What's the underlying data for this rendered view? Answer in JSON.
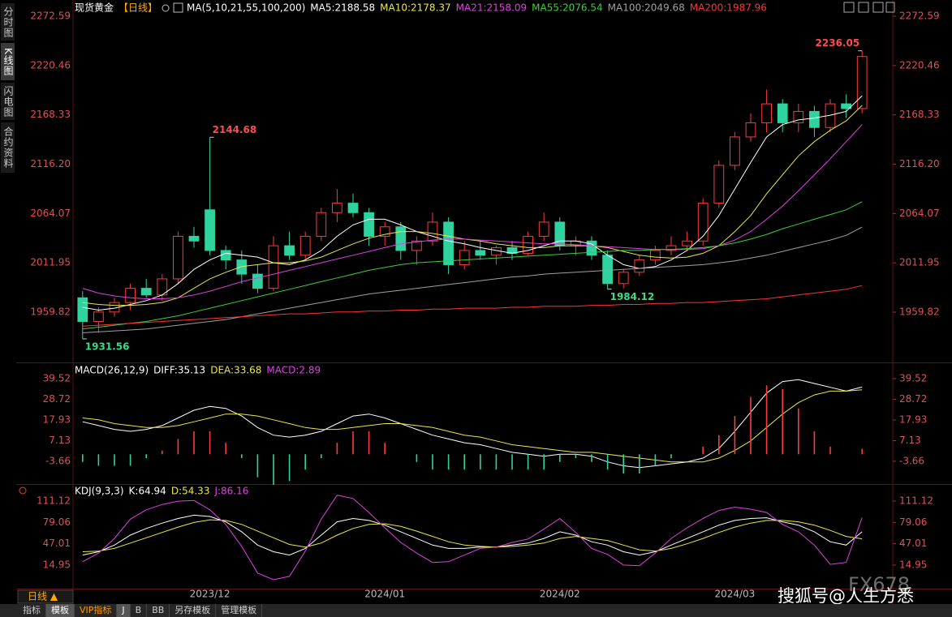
{
  "chart_data": [
    {
      "type": "candlestick",
      "title": "现货黄金",
      "period": "【日线】",
      "indicator": "MA(5,10,21,55,100,200)",
      "categories": [
        null,
        null,
        null,
        null,
        null,
        null,
        null,
        null,
        "2023/12",
        null,
        null,
        null,
        null,
        null,
        null,
        null,
        null,
        null,
        null,
        "2024/01",
        null,
        null,
        null,
        null,
        null,
        null,
        null,
        null,
        null,
        null,
        "2024/02",
        null,
        null,
        null,
        null,
        null,
        null,
        null,
        null,
        null,
        null,
        "2024/03",
        null,
        null,
        null,
        null,
        null,
        null,
        null,
        null
      ],
      "open": [
        1975,
        1950,
        1960,
        1970,
        1985,
        1978,
        1995,
        2040,
        2068,
        2025,
        2015,
        2000,
        1985,
        2030,
        2020,
        2040,
        2065,
        2075,
        2065,
        2040,
        2050,
        2025,
        2035,
        2055,
        2010,
        2025,
        2020,
        2028,
        2022,
        2040,
        2055,
        2030,
        2035,
        2020,
        1990,
        2002,
        2015,
        2025,
        2030,
        2035,
        2075,
        2115,
        2145,
        2160,
        2180,
        2160,
        2172,
        2155,
        2180,
        2175
      ],
      "high": [
        1982,
        1965,
        1975,
        1990,
        1995,
        2000,
        2045,
        2050,
        2144.68,
        2030,
        2025,
        2010,
        2040,
        2045,
        2045,
        2070,
        2090,
        2085,
        2070,
        2055,
        2055,
        2040,
        2065,
        2060,
        2035,
        2035,
        2030,
        2035,
        2045,
        2065,
        2060,
        2040,
        2040,
        2025,
        2005,
        2020,
        2030,
        2040,
        2045,
        2080,
        2120,
        2150,
        2170,
        2195,
        2185,
        2180,
        2178,
        2185,
        2190,
        2236.05
      ],
      "low": [
        1931.56,
        1938,
        1955,
        1962,
        1975,
        1972,
        1990,
        2028,
        2020,
        2005,
        1990,
        1980,
        1982,
        2015,
        2015,
        2035,
        2055,
        2060,
        2030,
        2030,
        2015,
        2010,
        2030,
        2000,
        2005,
        2015,
        2010,
        2015,
        2020,
        2035,
        2025,
        2020,
        2015,
        1984.12,
        1985,
        1998,
        2010,
        2020,
        2025,
        2030,
        2070,
        2110,
        2140,
        2150,
        2150,
        2150,
        2145,
        2150,
        2165,
        2170
      ],
      "close": [
        1950,
        1960,
        1970,
        1985,
        1978,
        1995,
        2040,
        2035,
        2025,
        2015,
        2000,
        1985,
        2030,
        2020,
        2040,
        2065,
        2075,
        2065,
        2040,
        2050,
        2025,
        2035,
        2055,
        2010,
        2025,
        2020,
        2028,
        2022,
        2040,
        2055,
        2030,
        2035,
        2020,
        1990,
        2002,
        2015,
        2025,
        2030,
        2035,
        2075,
        2115,
        2145,
        2160,
        2180,
        2160,
        2172,
        2155,
        2180,
        2175,
        2230
      ],
      "up_color": "#ff3a3a",
      "down_color": "#2fd3a0",
      "high_label_color": "#ff4d4d",
      "low_label_color": "#3ddc84",
      "series": [
        {
          "name": "MA5:2188.58",
          "color": "#ffffff",
          "values": [
            1965,
            1962,
            1964,
            1968,
            1972,
            1978,
            1990,
            2005,
            2015,
            2022,
            2020,
            2018,
            2012,
            2010,
            2015,
            2025,
            2040,
            2052,
            2058,
            2058,
            2052,
            2045,
            2040,
            2035,
            2032,
            2028,
            2025,
            2022,
            2025,
            2030,
            2035,
            2035,
            2032,
            2020,
            2010,
            2006,
            2008,
            2015,
            2025,
            2040,
            2062,
            2090,
            2118,
            2145,
            2158,
            2163,
            2165,
            2168,
            2172,
            2188.58
          ]
        },
        {
          "name": "MA10:2178.37",
          "color": "#e8e84a",
          "values": [
            1970,
            1968,
            1967,
            1967,
            1968,
            1970,
            1975,
            1985,
            1995,
            2002,
            2008,
            2010,
            2012,
            2012,
            2014,
            2018,
            2025,
            2032,
            2038,
            2042,
            2045,
            2045,
            2043,
            2040,
            2037,
            2035,
            2032,
            2030,
            2028,
            2028,
            2030,
            2030,
            2030,
            2028,
            2024,
            2020,
            2018,
            2017,
            2018,
            2022,
            2030,
            2045,
            2062,
            2085,
            2105,
            2125,
            2140,
            2152,
            2162,
            2178.37
          ]
        },
        {
          "name": "MA21:2158.09",
          "color": "#e040e0",
          "values": [
            1985,
            1980,
            1977,
            1975,
            1974,
            1974,
            1975,
            1978,
            1982,
            1987,
            1992,
            1996,
            2000,
            2004,
            2008,
            2012,
            2016,
            2020,
            2024,
            2028,
            2032,
            2034,
            2036,
            2037,
            2037,
            2036,
            2035,
            2034,
            2033,
            2032,
            2032,
            2031,
            2030,
            2029,
            2028,
            2027,
            2026,
            2026,
            2026,
            2027,
            2030,
            2036,
            2045,
            2058,
            2072,
            2088,
            2105,
            2122,
            2140,
            2158.09
          ]
        },
        {
          "name": "MA55:2076.54",
          "color": "#3ccf3c",
          "values": [
            1942,
            1944,
            1946,
            1948,
            1950,
            1953,
            1956,
            1960,
            1964,
            1968,
            1972,
            1976,
            1980,
            1984,
            1988,
            1992,
            1996,
            2000,
            2004,
            2007,
            2010,
            2012,
            2013,
            2014,
            2015,
            2016,
            2017,
            2018,
            2019,
            2020,
            2021,
            2022,
            2023,
            2024,
            2025,
            2025,
            2026,
            2026,
            2027,
            2028,
            2030,
            2033,
            2037,
            2042,
            2048,
            2053,
            2058,
            2063,
            2068,
            2076.54
          ]
        },
        {
          "name": "MA100:2049.68",
          "color": "#a0a0a0",
          "values": [
            1938,
            1939,
            1940,
            1941,
            1942,
            1944,
            1946,
            1948,
            1950,
            1952,
            1955,
            1958,
            1961,
            1964,
            1967,
            1970,
            1973,
            1976,
            1979,
            1981,
            1983,
            1985,
            1987,
            1989,
            1991,
            1993,
            1995,
            1997,
            1998,
            2000,
            2001,
            2002,
            2003,
            2004,
            2005,
            2006,
            2007,
            2008,
            2009,
            2010,
            2012,
            2014,
            2017,
            2020,
            2024,
            2028,
            2032,
            2036,
            2041,
            2049.68
          ]
        },
        {
          "name": "MA200:1987.96",
          "color": "#ff3333",
          "values": [
            1945,
            1946,
            1947,
            1948,
            1949,
            1950,
            1951,
            1952,
            1953,
            1954,
            1955,
            1956,
            1957,
            1958,
            1958,
            1959,
            1960,
            1960,
            1961,
            1961,
            1962,
            1962,
            1963,
            1963,
            1964,
            1964,
            1964,
            1965,
            1965,
            1966,
            1966,
            1966,
            1967,
            1967,
            1968,
            1968,
            1969,
            1969,
            1970,
            1970,
            1971,
            1972,
            1973,
            1974,
            1976,
            1978,
            1980,
            1982,
            1984,
            1987.96
          ]
        }
      ],
      "ylim": [
        1908.4,
        2282.9
      ],
      "yticks": [
        2272.59,
        2220.46,
        2168.33,
        {
          "value": 2116.2,
          "label": "2116.20"
        },
        2064.07,
        2011.95,
        1959.82
      ]
    },
    {
      "type": "macd",
      "title": "MACD(26,12,9)",
      "series": [
        {
          "name": "DIFF:35.13",
          "color": "#ffffff",
          "values": [
            17,
            15,
            13,
            12,
            13,
            15,
            19,
            23,
            25,
            24,
            20,
            14,
            10,
            9,
            10,
            12,
            16,
            20,
            21,
            19,
            16,
            13,
            10,
            8,
            6,
            5,
            3,
            1,
            0,
            -1,
            0,
            0,
            -1,
            -4,
            -6,
            -7,
            -6,
            -5,
            -4,
            -2,
            3,
            12,
            22,
            32,
            38,
            39,
            37,
            35,
            33,
            35.13
          ]
        },
        {
          "name": "DEA:33.68",
          "color": "#e8e84a",
          "values": [
            19,
            18,
            16,
            15,
            14,
            14,
            15,
            17,
            19,
            21,
            21,
            20,
            18,
            16,
            14,
            13,
            13,
            14,
            15,
            16,
            16,
            15,
            14,
            12,
            10,
            9,
            7,
            5,
            4,
            3,
            2,
            1,
            1,
            0,
            -1,
            -2,
            -3,
            -4,
            -4,
            -4,
            -2,
            2,
            7,
            14,
            21,
            27,
            31,
            33,
            33,
            33.68
          ]
        },
        {
          "name": "MACD:2.89",
          "color": "#e040e0",
          "type": "bar",
          "up_color": "#ff3a3a",
          "down_color": "#2fd3a0",
          "values": [
            -4,
            -6,
            -6,
            -6,
            -2,
            2,
            8,
            12,
            12,
            6,
            -2,
            -12,
            -16,
            -14,
            -8,
            -2,
            6,
            12,
            12,
            6,
            0,
            -4,
            -8,
            -8,
            -8,
            -8,
            -8,
            -8,
            -8,
            -8,
            -4,
            -2,
            -4,
            -8,
            -10,
            -10,
            -6,
            -2,
            0,
            4,
            10,
            20,
            30,
            36,
            34,
            24,
            12,
            4,
            0,
            2.89
          ]
        }
      ],
      "ylim": [
        -14.7,
        46.74
      ],
      "yticks": [
        39.52,
        28.72,
        17.93,
        7.13,
        -3.66
      ]
    },
    {
      "type": "line",
      "title": "KDJ(9,3,3)",
      "series": [
        {
          "name": "K:64.94",
          "color": "#ffffff",
          "values": [
            30,
            35,
            45,
            60,
            70,
            78,
            85,
            90,
            88,
            80,
            65,
            45,
            35,
            30,
            40,
            60,
            80,
            85,
            82,
            75,
            65,
            55,
            45,
            40,
            40,
            42,
            42,
            45,
            48,
            55,
            65,
            60,
            50,
            45,
            35,
            30,
            35,
            45,
            55,
            65,
            75,
            82,
            85,
            86,
            80,
            75,
            65,
            50,
            45,
            64.94
          ]
        },
        {
          "name": "D:54.33",
          "color": "#e8e84a",
          "values": [
            35,
            36,
            40,
            48,
            56,
            64,
            72,
            79,
            83,
            82,
            76,
            66,
            56,
            46,
            42,
            48,
            60,
            70,
            76,
            77,
            73,
            66,
            58,
            50,
            45,
            43,
            42,
            43,
            45,
            48,
            55,
            58,
            55,
            52,
            45,
            38,
            36,
            40,
            47,
            55,
            64,
            72,
            78,
            82,
            82,
            80,
            75,
            67,
            58,
            54.33
          ]
        },
        {
          "name": "J:86.16",
          "color": "#e040e0",
          "values": [
            20,
            33,
            55,
            84,
            98,
            106,
            111,
            112,
            98,
            76,
            43,
            3,
            -7,
            -2,
            36,
            84,
            120,
            115,
            94,
            71,
            49,
            33,
            19,
            20,
            30,
            40,
            42,
            49,
            54,
            69,
            85,
            64,
            40,
            31,
            15,
            14,
            33,
            55,
            71,
            85,
            97,
            102,
            99,
            94,
            76,
            65,
            45,
            16,
            19,
            86.16
          ]
        }
      ],
      "ylim": [
        -19.17,
        133.05
      ],
      "yticks": [
        111.12,
        79.06,
        47.01,
        14.95
      ]
    }
  ],
  "ui": {
    "side_tabs": [
      "分时图",
      "K线图",
      "闪电图",
      "合约资料"
    ],
    "period_button": "日线 ▲",
    "bottom_tabs": [
      "指标",
      "模板",
      "VIP指标",
      "J",
      "B",
      "BB",
      "另存模板",
      "管理模板"
    ],
    "watermark": "搜狐号@人生方悉",
    "logo": "FX678"
  }
}
